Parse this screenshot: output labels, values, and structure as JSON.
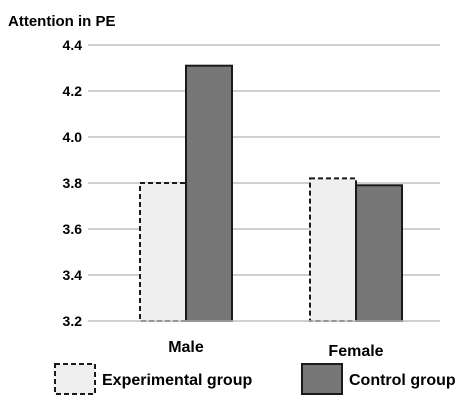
{
  "chart_data": {
    "type": "bar",
    "title": "",
    "ylabel": "Attention in PE",
    "xlabel": "",
    "ylim": [
      3.2,
      4.4
    ],
    "yticks": [
      "3.2",
      "3.4",
      "3.6",
      "3.8",
      "4.0",
      "4.2",
      "4.4"
    ],
    "grid": true,
    "legend_position": "bottom",
    "categories": [
      "Male",
      "Female"
    ],
    "series": [
      {
        "name": "Experimental group",
        "values": [
          3.8,
          3.82
        ],
        "fill": "#efefef",
        "stroke": "#1a1a1a",
        "dashed": true
      },
      {
        "name": "Control group",
        "values": [
          4.31,
          3.79
        ],
        "fill": "#777777",
        "stroke": "#1a1a1a",
        "dashed": false
      }
    ]
  }
}
